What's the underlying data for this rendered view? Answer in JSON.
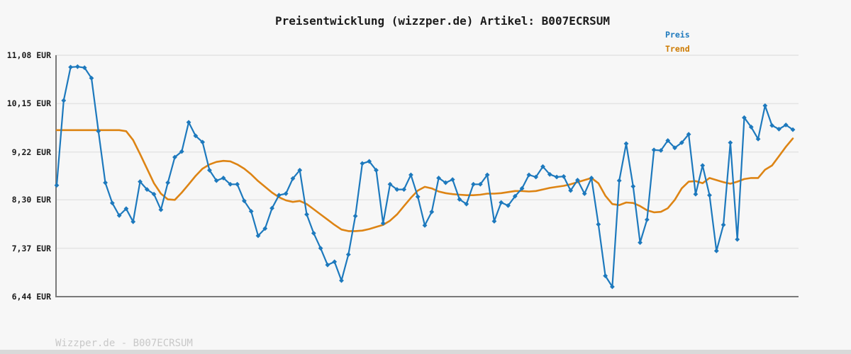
{
  "title": "Preisentwicklung (wizzper.de) Artikel: B007ECRSUM",
  "legend": {
    "preis": "Preis",
    "trend": "Trend"
  },
  "watermark": "Wizzper.de - B007ECRSUM",
  "colors": {
    "background": "#f7f7f7",
    "preis_line": "#1d79bd",
    "trend_line": "#dd8414",
    "legend_preis_text": "#1d79bd",
    "legend_trend_text": "#cd7a00",
    "grid": "#e4e4e4",
    "axis": "#7a7a7a",
    "title_text": "#1c1c1c",
    "watermark_text": "#c8c8c8",
    "bottom_bar": "#d9d9d9"
  },
  "chart_data": {
    "type": "line",
    "title": "Preisentwicklung (wizzper.de) Artikel: B007ECRSUM",
    "unit": "EUR",
    "ylim": [
      6.44,
      11.08
    ],
    "yticks": [
      {
        "label": "11,08 EUR",
        "value": 11.08
      },
      {
        "label": "10,15 EUR",
        "value": 10.15
      },
      {
        "label": "9,22 EUR",
        "value": 9.22
      },
      {
        "label": "8,30 EUR",
        "value": 8.3
      },
      {
        "label": "7,37 EUR",
        "value": 7.37
      },
      {
        "label": "6,44 EUR",
        "value": 6.44
      }
    ],
    "grid": true,
    "legend_position": "top-right",
    "xlabel": "",
    "ylabel": "",
    "x_tick_labels": [],
    "series": [
      {
        "name": "Preis",
        "color": "#1d79bd",
        "marker": "diamond",
        "values": [
          8.58,
          10.21,
          10.85,
          10.86,
          10.84,
          10.64,
          9.62,
          8.63,
          8.24,
          8.0,
          8.13,
          7.88,
          8.65,
          8.5,
          8.41,
          8.11,
          8.63,
          9.12,
          9.23,
          9.79,
          9.53,
          9.41,
          8.87,
          8.67,
          8.72,
          8.6,
          8.6,
          8.28,
          8.08,
          7.61,
          7.75,
          8.14,
          8.39,
          8.42,
          8.71,
          8.87,
          8.02,
          7.66,
          7.37,
          7.05,
          7.11,
          6.75,
          7.25,
          7.99,
          9.0,
          9.04,
          8.87,
          7.85,
          8.6,
          8.5,
          8.5,
          8.78,
          8.36,
          7.81,
          8.07,
          8.72,
          8.63,
          8.69,
          8.31,
          8.22,
          8.6,
          8.6,
          8.78,
          7.89,
          8.25,
          8.19,
          8.37,
          8.52,
          8.78,
          8.74,
          8.94,
          8.79,
          8.74,
          8.75,
          8.48,
          8.68,
          8.42,
          8.72,
          7.83,
          6.84,
          6.63,
          8.67,
          9.38,
          8.56,
          7.48,
          7.92,
          9.26,
          9.25,
          9.44,
          9.3,
          9.4,
          9.56,
          8.41,
          8.96,
          8.39,
          7.32,
          7.82,
          9.4,
          7.54,
          9.88,
          9.7,
          9.47,
          10.11,
          9.73,
          9.66,
          9.74,
          9.65
        ]
      },
      {
        "name": "Trend",
        "color": "#dd8414",
        "marker": "none",
        "values": [
          9.64,
          9.64,
          9.64,
          9.64,
          9.64,
          9.64,
          9.64,
          9.64,
          9.64,
          9.64,
          9.62,
          9.45,
          9.18,
          8.9,
          8.62,
          8.42,
          8.31,
          8.3,
          8.44,
          8.6,
          8.76,
          8.9,
          8.98,
          9.03,
          9.05,
          9.04,
          8.98,
          8.9,
          8.79,
          8.66,
          8.55,
          8.44,
          8.35,
          8.29,
          8.26,
          8.28,
          8.22,
          8.12,
          8.02,
          7.92,
          7.82,
          7.73,
          7.7,
          7.7,
          7.71,
          7.74,
          7.78,
          7.82,
          7.9,
          8.02,
          8.18,
          8.34,
          8.48,
          8.55,
          8.52,
          8.46,
          8.43,
          8.41,
          8.4,
          8.39,
          8.39,
          8.4,
          8.42,
          8.42,
          8.43,
          8.45,
          8.47,
          8.47,
          8.46,
          8.47,
          8.5,
          8.53,
          8.55,
          8.57,
          8.6,
          8.64,
          8.68,
          8.72,
          8.62,
          8.38,
          8.22,
          8.2,
          8.25,
          8.24,
          8.18,
          8.1,
          8.06,
          8.07,
          8.14,
          8.3,
          8.52,
          8.65,
          8.66,
          8.62,
          8.72,
          8.68,
          8.64,
          8.61,
          8.65,
          8.7,
          8.72,
          8.72,
          8.88,
          8.96,
          9.14,
          9.32,
          9.48
        ]
      }
    ]
  }
}
